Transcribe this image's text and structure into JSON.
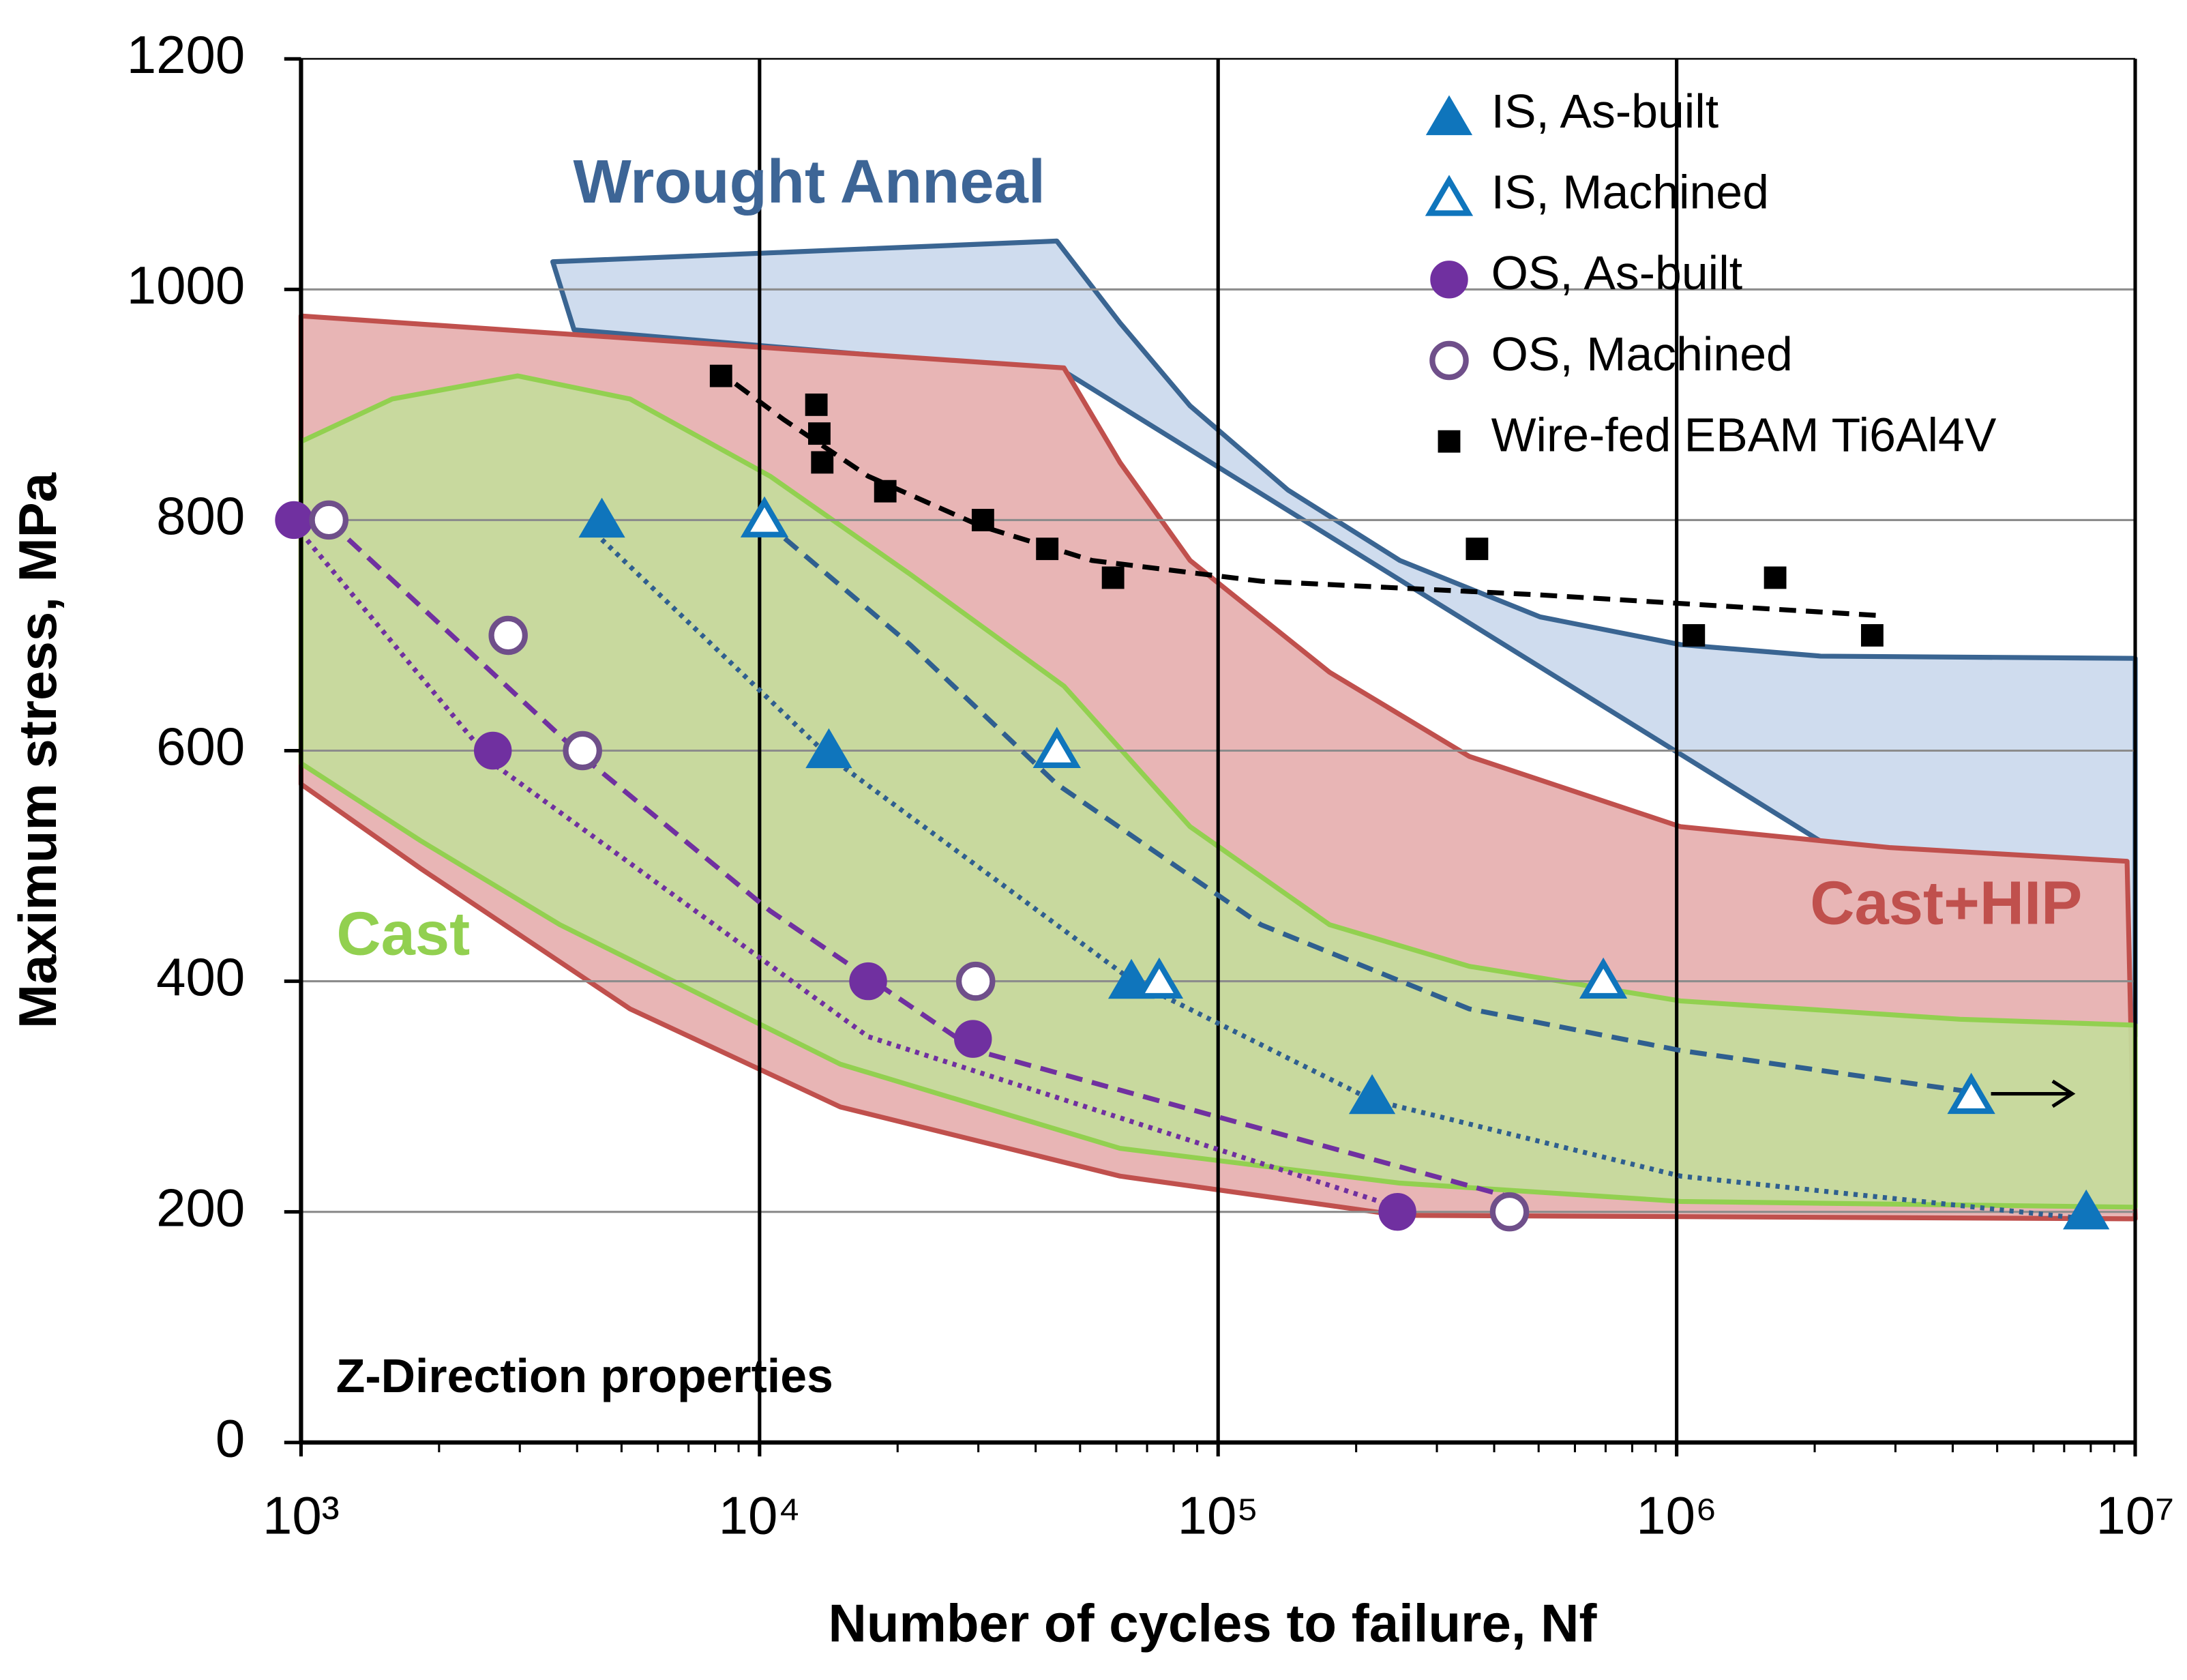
{
  "chart_data": {
    "type": "scatter",
    "xlabel": "Number of cycles to failure, Nf",
    "ylabel": "Maximum stress, MPa",
    "annotation": "Z-Direction properties",
    "xscale": "log",
    "xlim": [
      1000,
      10000000
    ],
    "ylim": [
      0,
      1200
    ],
    "xticks": [
      {
        "value": 1000,
        "label": "10³"
      },
      {
        "value": 10000,
        "label": "10⁴"
      },
      {
        "value": 100000,
        "label": "10⁵"
      },
      {
        "value": 1000000,
        "label": "10⁶"
      },
      {
        "value": 10000000,
        "label": "10⁷"
      }
    ],
    "xminorticks": [
      2000,
      3000,
      4000,
      5000,
      6000,
      7000,
      8000,
      9000,
      20000,
      30000,
      40000,
      50000,
      60000,
      70000,
      80000,
      90000,
      200000,
      300000,
      400000,
      500000,
      600000,
      700000,
      800000,
      900000,
      2000000,
      3000000,
      4000000,
      5000000,
      6000000,
      7000000,
      8000000,
      9000000
    ],
    "yticks": [
      0,
      200,
      400,
      600,
      800,
      1000,
      1200
    ],
    "grid": true,
    "legend": "upper right",
    "regions": [
      {
        "name": "Wrought Anneal",
        "fill": "#cfdcee",
        "stroke": "#3a6592",
        "label_color": "#3d6596",
        "x": [
          3540,
          44500,
          61100,
          86900,
          142000,
          249000,
          504000,
          1020000,
          2060000,
          10000000,
          10000000,
          46100,
          3940
        ],
        "values": [
          1024,
          1042,
          971,
          899,
          826,
          765,
          716,
          692,
          682,
          680,
          352,
          929,
          965
        ]
      },
      {
        "name": "Cast+HIP",
        "fill": "#e8b5b5",
        "stroke": "#c0504d",
        "label_color": "#c0504d",
        "x": [
          1000,
          46100,
          61100,
          86900,
          175000,
          353000,
          1020000,
          2910000,
          9600000,
          10000000,
          249000,
          61100,
          15000,
          5220,
          1820,
          1000
        ],
        "values": [
          977,
          932,
          850,
          765,
          668,
          595,
          534,
          516,
          504,
          194,
          197,
          231,
          291,
          376,
          498,
          571
        ]
      },
      {
        "name": "Cast",
        "fill": "#c4dc9c",
        "stroke": "#92d050",
        "label_color": "#92d050",
        "x": [
          1000,
          1580,
          2970,
          5220,
          10540,
          21300,
          46100,
          86900,
          175000,
          353000,
          1020000,
          4150000,
          10000000,
          10000000,
          1020000,
          249000,
          61100,
          15000,
          3670,
          1820,
          1000
        ],
        "values": [
          868,
          905,
          925,
          905,
          838,
          753,
          656,
          534,
          449,
          413,
          383,
          367,
          362,
          204,
          209,
          225,
          255,
          328,
          449,
          522,
          589
        ]
      }
    ],
    "series": [
      {
        "name": "IS, As-built",
        "color": "#0f75bc",
        "marker": "triangle",
        "filled": true,
        "x": [
          4530,
          14160,
          64700,
          216700,
          7820000
        ],
        "values": [
          800,
          600,
          400,
          300,
          200
        ]
      },
      {
        "name": "IS, Machined",
        "color": "#0f75bc",
        "marker": "triangle",
        "filled": false,
        "x": [
          10250,
          44500,
          74400,
          692000,
          4390000
        ],
        "values": [
          800,
          600,
          400,
          400,
          300
        ]
      },
      {
        "name": "OS, As-built",
        "color": "#7030a0",
        "marker": "circle",
        "filled": true,
        "x": [
          965,
          2620,
          17250,
          29200,
          246000
        ],
        "values": [
          800,
          600,
          400,
          350,
          200
        ]
      },
      {
        "name": "OS, Machined",
        "color": "#6f4f8a",
        "marker": "circle",
        "filled": false,
        "x": [
          1150,
          2830,
          4110,
          29600,
          432000
        ],
        "values": [
          800,
          700,
          600,
          400,
          200
        ]
      },
      {
        "name": "Wire-fed EBAM Ti6Al4V",
        "color": "#000000",
        "marker": "square",
        "filled": true,
        "x": [
          8240,
          13300,
          13500,
          13700,
          18800,
          30700,
          42400,
          59000,
          367000,
          1090000,
          1640000,
          2670000
        ],
        "values": [
          925,
          900,
          875,
          850,
          825,
          800,
          775,
          750,
          775,
          700,
          750,
          700
        ]
      }
    ],
    "fits": [
      {
        "color": "#000000",
        "dash": "dashed",
        "x": [
          7960,
          11300,
          17250,
          30300,
          53100,
          124000,
          504000,
          2820000
        ],
        "values": [
          932,
          887,
          838,
          795,
          765,
          747,
          735,
          717
        ]
      },
      {
        "color": "#2f5f8f",
        "dash": "dashed",
        "x": [
          10250,
          21300,
          44500,
          124000,
          353000,
          1020000,
          4390000
        ],
        "values": [
          799,
          692,
          571,
          449,
          376,
          340,
          304
        ]
      },
      {
        "color": "#2f5f8f",
        "dash": "dotted",
        "x": [
          4530,
          14160,
          64700,
          216700,
          1020000,
          7820000
        ],
        "values": [
          783,
          595,
          401,
          297,
          231,
          194
        ]
      },
      {
        "color": "#7030a0",
        "dash": "dashed",
        "x": [
          1150,
          4110,
          10540,
          29600,
          432000
        ],
        "values": [
          799,
          595,
          461,
          340,
          213
        ]
      },
      {
        "color": "#7030a0",
        "dash": "dotted",
        "x": [
          1000,
          2620,
          17250,
          246000
        ],
        "values": [
          789,
          589,
          352,
          204
        ]
      }
    ]
  }
}
